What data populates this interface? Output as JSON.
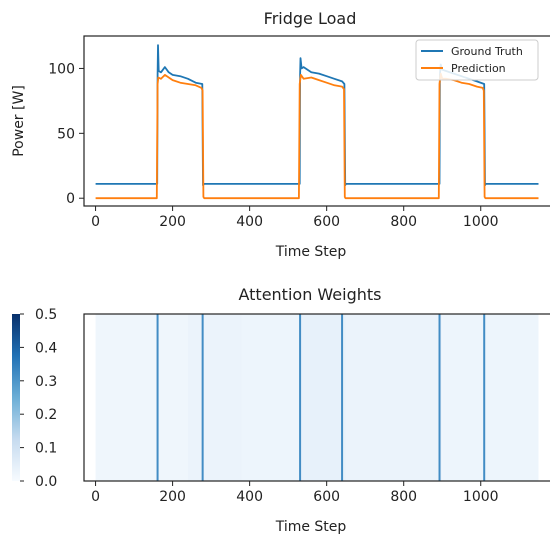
{
  "chart_data": [
    {
      "type": "line",
      "title": "Fridge Load",
      "xlabel": "Time Step",
      "ylabel": "Power [W]",
      "xlim": [
        -30,
        1185
      ],
      "ylim": [
        -6,
        125
      ],
      "xticks": [
        0,
        200,
        400,
        600,
        800,
        1000
      ],
      "yticks": [
        0,
        50,
        100
      ],
      "legend_position": "top-right",
      "colors": {
        "ground_truth": "#1f77b4",
        "prediction": "#ff7f0e"
      },
      "series": [
        {
          "name": "Ground Truth",
          "points": [
            [
              0,
              11
            ],
            [
              160,
              11
            ],
            [
              161,
              95
            ],
            [
              162,
              118
            ],
            [
              164,
              98
            ],
            [
              170,
              97
            ],
            [
              180,
              101
            ],
            [
              190,
              97
            ],
            [
              200,
              95
            ],
            [
              220,
              94
            ],
            [
              240,
              92
            ],
            [
              260,
              89
            ],
            [
              277,
              88
            ],
            [
              279,
              10
            ],
            [
              282,
              11
            ],
            [
              530,
              11
            ],
            [
              531,
              95
            ],
            [
              532,
              108
            ],
            [
              535,
              100
            ],
            [
              540,
              101
            ],
            [
              560,
              97
            ],
            [
              580,
              96
            ],
            [
              600,
              94
            ],
            [
              620,
              92
            ],
            [
              640,
              90
            ],
            [
              646,
              88
            ],
            [
              648,
              10
            ],
            [
              650,
              11
            ],
            [
              893,
              11
            ],
            [
              894,
              95
            ],
            [
              896,
              103
            ],
            [
              900,
              99
            ],
            [
              910,
              98
            ],
            [
              930,
              96
            ],
            [
              950,
              94
            ],
            [
              970,
              92
            ],
            [
              990,
              90
            ],
            [
              1009,
              88
            ],
            [
              1011,
              10
            ],
            [
              1013,
              11
            ],
            [
              1150,
              11
            ]
          ]
        },
        {
          "name": "Prediction",
          "points": [
            [
              0,
              0
            ],
            [
              159,
              0
            ],
            [
              161,
              88
            ],
            [
              163,
              93
            ],
            [
              170,
              92
            ],
            [
              180,
              95
            ],
            [
              200,
              91
            ],
            [
              220,
              89
            ],
            [
              240,
              88
            ],
            [
              260,
              87
            ],
            [
              275,
              85
            ],
            [
              278,
              83
            ],
            [
              280,
              1
            ],
            [
              282,
              0
            ],
            [
              528,
              0
            ],
            [
              530,
              88
            ],
            [
              533,
              95
            ],
            [
              540,
              92
            ],
            [
              560,
              93
            ],
            [
              580,
              91
            ],
            [
              600,
              89
            ],
            [
              620,
              87
            ],
            [
              640,
              86
            ],
            [
              645,
              84
            ],
            [
              647,
              1
            ],
            [
              649,
              0
            ],
            [
              891,
              0
            ],
            [
              893,
              88
            ],
            [
              896,
              96
            ],
            [
              900,
              92
            ],
            [
              910,
              92
            ],
            [
              930,
              91
            ],
            [
              950,
              89
            ],
            [
              970,
              88
            ],
            [
              990,
              86
            ],
            [
              1005,
              85
            ],
            [
              1008,
              83
            ],
            [
              1010,
              1
            ],
            [
              1012,
              0
            ],
            [
              1150,
              0
            ]
          ]
        }
      ]
    },
    {
      "type": "heatmap",
      "title": "Attention Weights",
      "xlabel": "Time Step",
      "ylabel": "",
      "xlim": [
        -30,
        1185
      ],
      "xticks": [
        0,
        200,
        400,
        600,
        800,
        1000
      ],
      "colorbar": {
        "range": [
          0,
          0.5
        ],
        "ticks": [
          "0.0",
          "0.1",
          "0.2",
          "0.3",
          "0.4",
          "0.5"
        ]
      },
      "bands": [
        {
          "x0": 0,
          "x1": 240,
          "value": 0.02
        },
        {
          "x0": 240,
          "x1": 380,
          "value": 0.03
        },
        {
          "x0": 380,
          "x1": 530,
          "value": 0.025
        },
        {
          "x0": 530,
          "x1": 650,
          "value": 0.04
        },
        {
          "x0": 650,
          "x1": 900,
          "value": 0.03
        },
        {
          "x0": 900,
          "x1": 1150,
          "value": 0.025
        }
      ],
      "peaks": [
        {
          "x": 161,
          "value": 0.32
        },
        {
          "x": 278,
          "value": 0.32
        },
        {
          "x": 531,
          "value": 0.32
        },
        {
          "x": 640,
          "value": 0.32
        },
        {
          "x": 893,
          "value": 0.32
        },
        {
          "x": 1009,
          "value": 0.32
        }
      ]
    }
  ]
}
